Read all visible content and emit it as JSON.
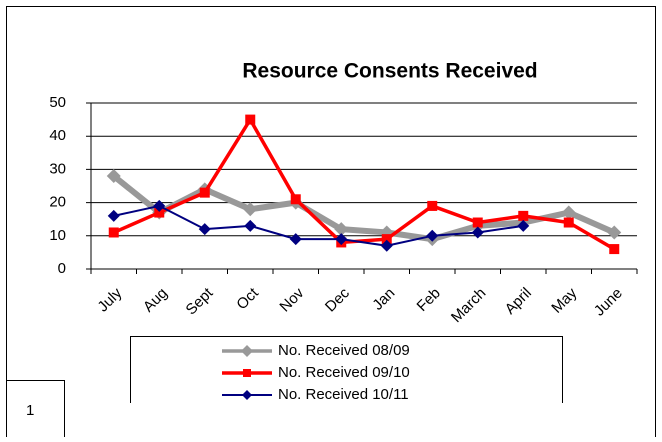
{
  "chart_data": {
    "type": "line",
    "title": "Resource Consents Received",
    "categories": [
      "July",
      "Aug",
      "Sept",
      "Oct",
      "Nov",
      "Dec",
      "Jan",
      "Feb",
      "March",
      "April",
      "May",
      "June"
    ],
    "series": [
      {
        "name": "No. Received  08/09",
        "color": "#999999",
        "values": [
          28,
          17,
          24,
          18,
          20,
          12,
          11,
          9,
          13,
          14,
          17,
          11
        ]
      },
      {
        "name": "No. Received  09/10",
        "color": "#ff0000",
        "values": [
          11,
          17,
          23,
          45,
          21,
          8,
          9,
          19,
          14,
          16,
          14,
          6
        ]
      },
      {
        "name": "No. Received  10/11",
        "color": "#000080",
        "values": [
          16,
          19,
          12,
          13,
          9,
          9,
          7,
          10,
          11,
          13,
          null,
          null
        ]
      }
    ],
    "ylim": [
      0,
      50
    ],
    "yticks": [
      0,
      10,
      20,
      30,
      40,
      50
    ],
    "grid": true
  },
  "corner_label": "1"
}
